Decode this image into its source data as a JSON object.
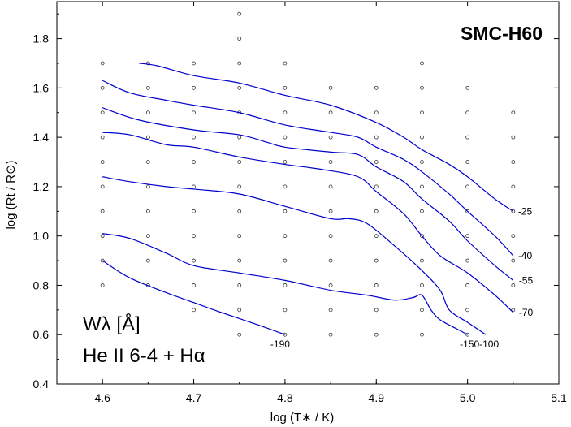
{
  "chart_data": {
    "type": "line",
    "title": "SMC-H60",
    "xlabel": "log (T∗ / K)",
    "ylabel": "log (Rt / R⊙)",
    "xlim": [
      4.55,
      5.1
    ],
    "ylim": [
      0.4,
      1.95
    ],
    "xticks": [
      "4.6",
      "4.7",
      "4.8",
      "4.9",
      "5.0",
      "5.1"
    ],
    "yticks": [
      "0.4",
      "0.6",
      "0.8",
      "1.0",
      "1.2",
      "1.4",
      "1.6",
      "1.8"
    ],
    "annotation_line1": "Wλ  [Å]",
    "annotation_line2": "He II 6-4 + Hα",
    "grid_points": [
      [
        4.6,
        0.8
      ],
      [
        4.6,
        0.9
      ],
      [
        4.6,
        1.0
      ],
      [
        4.6,
        1.1
      ],
      [
        4.6,
        1.2
      ],
      [
        4.6,
        1.3
      ],
      [
        4.6,
        1.4
      ],
      [
        4.6,
        1.5
      ],
      [
        4.6,
        1.6
      ],
      [
        4.6,
        1.7
      ],
      [
        4.65,
        0.8
      ],
      [
        4.65,
        0.9
      ],
      [
        4.65,
        1.0
      ],
      [
        4.65,
        1.1
      ],
      [
        4.65,
        1.2
      ],
      [
        4.65,
        1.3
      ],
      [
        4.65,
        1.4
      ],
      [
        4.65,
        1.5
      ],
      [
        4.65,
        1.6
      ],
      [
        4.65,
        1.7
      ],
      [
        4.7,
        0.7
      ],
      [
        4.7,
        0.8
      ],
      [
        4.7,
        0.9
      ],
      [
        4.7,
        1.0
      ],
      [
        4.7,
        1.1
      ],
      [
        4.7,
        1.2
      ],
      [
        4.7,
        1.3
      ],
      [
        4.7,
        1.4
      ],
      [
        4.7,
        1.5
      ],
      [
        4.7,
        1.6
      ],
      [
        4.7,
        1.7
      ],
      [
        4.75,
        0.6
      ],
      [
        4.75,
        0.7
      ],
      [
        4.75,
        0.8
      ],
      [
        4.75,
        0.9
      ],
      [
        4.75,
        1.0
      ],
      [
        4.75,
        1.1
      ],
      [
        4.75,
        1.2
      ],
      [
        4.75,
        1.3
      ],
      [
        4.75,
        1.4
      ],
      [
        4.75,
        1.5
      ],
      [
        4.75,
        1.6
      ],
      [
        4.75,
        1.7
      ],
      [
        4.75,
        1.8
      ],
      [
        4.75,
        1.9
      ],
      [
        4.8,
        0.6
      ],
      [
        4.8,
        0.7
      ],
      [
        4.8,
        0.8
      ],
      [
        4.8,
        0.9
      ],
      [
        4.8,
        1.0
      ],
      [
        4.8,
        1.1
      ],
      [
        4.8,
        1.2
      ],
      [
        4.8,
        1.3
      ],
      [
        4.8,
        1.4
      ],
      [
        4.8,
        1.5
      ],
      [
        4.8,
        1.6
      ],
      [
        4.8,
        1.7
      ],
      [
        4.85,
        0.6
      ],
      [
        4.85,
        0.7
      ],
      [
        4.85,
        0.8
      ],
      [
        4.85,
        0.9
      ],
      [
        4.85,
        1.0
      ],
      [
        4.85,
        1.1
      ],
      [
        4.85,
        1.2
      ],
      [
        4.85,
        1.3
      ],
      [
        4.85,
        1.4
      ],
      [
        4.85,
        1.5
      ],
      [
        4.85,
        1.6
      ],
      [
        4.9,
        0.6
      ],
      [
        4.9,
        0.7
      ],
      [
        4.9,
        0.8
      ],
      [
        4.9,
        0.9
      ],
      [
        4.9,
        1.0
      ],
      [
        4.9,
        1.1
      ],
      [
        4.9,
        1.2
      ],
      [
        4.9,
        1.3
      ],
      [
        4.9,
        1.4
      ],
      [
        4.9,
        1.5
      ],
      [
        4.9,
        1.6
      ],
      [
        4.95,
        0.6
      ],
      [
        4.95,
        0.7
      ],
      [
        4.95,
        0.8
      ],
      [
        4.95,
        0.9
      ],
      [
        4.95,
        1.0
      ],
      [
        4.95,
        1.1
      ],
      [
        4.95,
        1.2
      ],
      [
        4.95,
        1.3
      ],
      [
        4.95,
        1.4
      ],
      [
        4.95,
        1.5
      ],
      [
        4.95,
        1.6
      ],
      [
        4.95,
        1.7
      ],
      [
        5.0,
        0.6
      ],
      [
        5.0,
        0.7
      ],
      [
        5.0,
        0.8
      ],
      [
        5.0,
        0.9
      ],
      [
        5.0,
        1.0
      ],
      [
        5.0,
        1.1
      ],
      [
        5.0,
        1.2
      ],
      [
        5.0,
        1.3
      ],
      [
        5.0,
        1.4
      ],
      [
        5.0,
        1.5
      ],
      [
        5.0,
        1.6
      ],
      [
        5.05,
        0.7
      ],
      [
        5.05,
        0.8
      ],
      [
        5.05,
        0.9
      ],
      [
        5.05,
        1.0
      ],
      [
        5.05,
        1.1
      ],
      [
        5.05,
        1.2
      ],
      [
        5.05,
        1.3
      ],
      [
        5.05,
        1.4
      ],
      [
        5.05,
        1.5
      ]
    ],
    "series": [
      {
        "name": "-25",
        "color": "#0000cc",
        "x": [
          4.64,
          4.66,
          4.7,
          4.75,
          4.8,
          4.85,
          4.9,
          4.93,
          4.95,
          4.98,
          5.0,
          5.03,
          5.05
        ],
        "y": [
          1.7,
          1.69,
          1.65,
          1.62,
          1.57,
          1.53,
          1.46,
          1.4,
          1.35,
          1.29,
          1.24,
          1.15,
          1.1
        ]
      },
      {
        "name": "-40",
        "color": "#0000cc",
        "x": [
          4.6,
          4.63,
          4.67,
          4.7,
          4.75,
          4.8,
          4.85,
          4.88,
          4.9,
          4.93,
          4.95,
          4.98,
          5.0,
          5.03,
          5.05
        ],
        "y": [
          1.63,
          1.58,
          1.55,
          1.53,
          1.5,
          1.45,
          1.42,
          1.4,
          1.36,
          1.31,
          1.26,
          1.17,
          1.1,
          1.0,
          0.92
        ]
      },
      {
        "name": "-55",
        "color": "#0000cc",
        "x": [
          4.6,
          4.64,
          4.7,
          4.75,
          4.78,
          4.8,
          4.85,
          4.88,
          4.9,
          4.93,
          4.95,
          4.98,
          5.0,
          5.03,
          5.05
        ],
        "y": [
          1.52,
          1.47,
          1.43,
          1.41,
          1.38,
          1.36,
          1.34,
          1.33,
          1.28,
          1.22,
          1.15,
          1.06,
          0.98,
          0.88,
          0.82
        ]
      },
      {
        "name": "-70",
        "color": "#0000cc",
        "x": [
          4.6,
          4.63,
          4.67,
          4.7,
          4.75,
          4.8,
          4.84,
          4.88,
          4.9,
          4.93,
          4.95,
          4.97,
          5.0,
          5.03,
          5.05
        ],
        "y": [
          1.42,
          1.41,
          1.37,
          1.36,
          1.32,
          1.29,
          1.27,
          1.24,
          1.18,
          1.09,
          1.0,
          0.92,
          0.85,
          0.76,
          0.69
        ]
      },
      {
        "name": "-150-100",
        "color": "#0000cc",
        "x": [
          4.6,
          4.63,
          4.67,
          4.7,
          4.75,
          4.8,
          4.85,
          4.87,
          4.89,
          4.92,
          4.95,
          4.97,
          4.98,
          5.0,
          5.02
        ],
        "y": [
          1.24,
          1.22,
          1.2,
          1.19,
          1.17,
          1.12,
          1.07,
          1.07,
          1.05,
          0.96,
          0.86,
          0.78,
          0.7,
          0.65,
          0.6
        ]
      },
      {
        "name": "",
        "color": "#0000cc",
        "x": [
          4.6,
          4.63,
          4.67,
          4.7,
          4.75,
          4.8,
          4.85,
          4.89,
          4.92,
          4.94,
          4.95,
          4.96,
          4.97,
          4.99,
          5.0
        ],
        "y": [
          1.01,
          0.99,
          0.93,
          0.88,
          0.85,
          0.82,
          0.78,
          0.76,
          0.74,
          0.75,
          0.76,
          0.7,
          0.66,
          0.62,
          0.6
        ]
      },
      {
        "name": "-190",
        "color": "#0000cc",
        "x": [
          4.6,
          4.63,
          4.67,
          4.7,
          4.73,
          4.77,
          4.8
        ],
        "y": [
          0.9,
          0.83,
          0.77,
          0.73,
          0.69,
          0.64,
          0.6
        ]
      }
    ]
  }
}
